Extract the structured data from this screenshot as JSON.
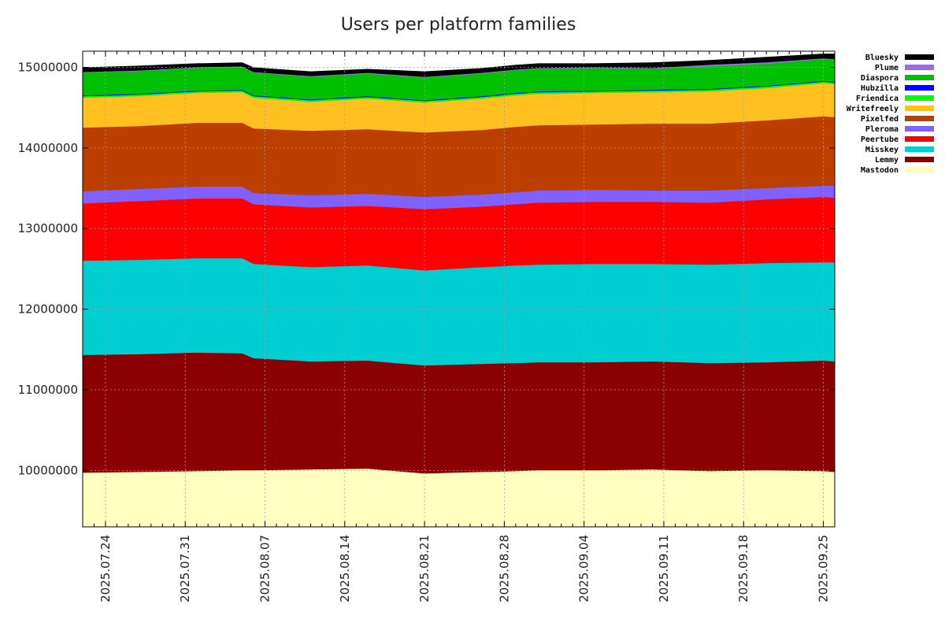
{
  "chart_data": {
    "type": "area",
    "stacked": true,
    "title": "Users per platform families",
    "xlabel": "",
    "ylabel": "",
    "ylim": [
      9300000,
      15200000
    ],
    "grid": true,
    "legend_position": "top-right outside",
    "x_start": "2025-07-22",
    "x_end": "2025-09-26",
    "x_tick_labels": [
      "2025.07.24",
      "2025.07.31",
      "2025.08.07",
      "2025.08.14",
      "2025.08.21",
      "2025.08.28",
      "2025.09.04",
      "2025.09.11",
      "2025.09.18",
      "2025.09.25"
    ],
    "x_tick_days": [
      2,
      9,
      16,
      23,
      30,
      37,
      44,
      51,
      58,
      65
    ],
    "y_ticks": [
      10000000,
      11000000,
      12000000,
      13000000,
      14000000,
      15000000
    ],
    "y_tick_labels": [
      "10000000",
      "11000000",
      "12000000",
      "13000000",
      "14000000",
      "15000000"
    ],
    "x": [
      0,
      5,
      10,
      14,
      15,
      20,
      25,
      30,
      35,
      38,
      40,
      45,
      50,
      55,
      60,
      65,
      66
    ],
    "cumulative_tops": [
      {
        "name": "Mastodon",
        "color": "#ffffc0",
        "values": [
          9970000,
          9980000,
          9990000,
          10000000,
          10000000,
          10010000,
          10020000,
          9960000,
          9980000,
          9990000,
          10000000,
          10000000,
          10010000,
          9990000,
          10000000,
          9990000,
          9980000
        ]
      },
      {
        "name": "Lemmy",
        "color": "#8b0000",
        "values": [
          11430000,
          11440000,
          11460000,
          11450000,
          11390000,
          11350000,
          11360000,
          11300000,
          11320000,
          11330000,
          11340000,
          11340000,
          11350000,
          11330000,
          11340000,
          11360000,
          11350000
        ]
      },
      {
        "name": "Misskey",
        "color": "#00ced1",
        "values": [
          12600000,
          12610000,
          12630000,
          12630000,
          12560000,
          12520000,
          12540000,
          12480000,
          12520000,
          12540000,
          12550000,
          12560000,
          12560000,
          12550000,
          12570000,
          12580000,
          12580000
        ]
      },
      {
        "name": "Peertube",
        "color": "#ff0000",
        "values": [
          13310000,
          13340000,
          13370000,
          13370000,
          13300000,
          13260000,
          13280000,
          13240000,
          13270000,
          13300000,
          13320000,
          13330000,
          13330000,
          13320000,
          13360000,
          13390000,
          13380000
        ]
      },
      {
        "name": "Pleroma",
        "color": "#8060ff",
        "values": [
          13460000,
          13490000,
          13520000,
          13520000,
          13440000,
          13410000,
          13430000,
          13390000,
          13420000,
          13450000,
          13470000,
          13480000,
          13470000,
          13470000,
          13500000,
          13530000,
          13530000
        ]
      },
      {
        "name": "Pixelfed",
        "color": "#bd3f00",
        "values": [
          14250000,
          14270000,
          14310000,
          14310000,
          14240000,
          14210000,
          14230000,
          14190000,
          14220000,
          14260000,
          14280000,
          14290000,
          14300000,
          14300000,
          14340000,
          14390000,
          14380000
        ]
      },
      {
        "name": "Writefreely",
        "color": "#ffc020",
        "values": [
          14620000,
          14640000,
          14680000,
          14690000,
          14620000,
          14570000,
          14610000,
          14560000,
          14610000,
          14650000,
          14670000,
          14680000,
          14690000,
          14700000,
          14740000,
          14800000,
          14790000
        ]
      },
      {
        "name": "Friendica",
        "color": "#00ff00",
        "values": [
          14640000,
          14660000,
          14700000,
          14710000,
          14640000,
          14590000,
          14630000,
          14580000,
          14630000,
          14670000,
          14690000,
          14700000,
          14710000,
          14720000,
          14760000,
          14820000,
          14810000
        ]
      },
      {
        "name": "Hubzilla",
        "color": "#0000ff",
        "values": [
          14650000,
          14670000,
          14710000,
          14720000,
          14650000,
          14600000,
          14640000,
          14590000,
          14640000,
          14680000,
          14700000,
          14710000,
          14720000,
          14730000,
          14770000,
          14830000,
          14820000
        ]
      },
      {
        "name": "Diaspora",
        "color": "#00c000",
        "values": [
          14930000,
          14950000,
          14990000,
          15000000,
          14930000,
          14880000,
          14920000,
          14870000,
          14920000,
          14960000,
          14980000,
          14990000,
          14980000,
          15010000,
          15040000,
          15100000,
          15090000
        ]
      },
      {
        "name": "Plume",
        "color": "#9370db",
        "values": [
          14940000,
          14960000,
          15000000,
          15010000,
          14940000,
          14890000,
          14930000,
          14880000,
          14930000,
          14970000,
          14990000,
          15000000,
          14990000,
          15030000,
          15060000,
          15110000,
          15100000
        ]
      },
      {
        "name": "Bluesky",
        "color": "#000000",
        "values": [
          15000000,
          15020000,
          15050000,
          15060000,
          15000000,
          14950000,
          14980000,
          14950000,
          14990000,
          15030000,
          15050000,
          15050000,
          15060000,
          15090000,
          15130000,
          15170000,
          15170000
        ]
      }
    ],
    "legend": [
      "Bluesky",
      "Plume",
      "Diaspora",
      "Hubzilla",
      "Friendica",
      "Writefreely",
      "Pixelfed",
      "Pleroma",
      "Peertube",
      "Misskey",
      "Lemmy",
      "Mastodon"
    ]
  }
}
